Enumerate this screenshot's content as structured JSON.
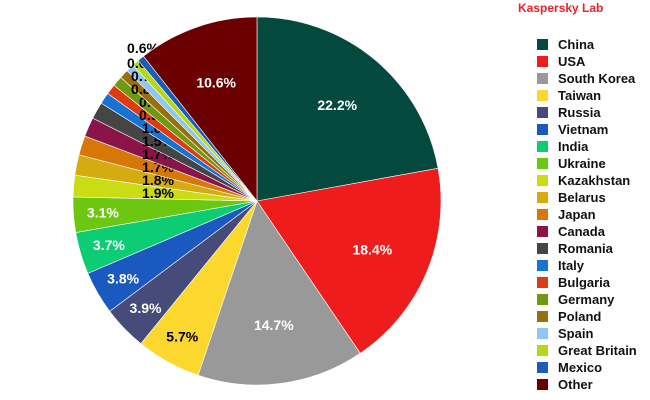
{
  "brand": "Kaspersky Lab",
  "chart_data": {
    "type": "pie",
    "title": "",
    "legend_position": "right",
    "start": "top, clockwise",
    "slices": [
      {
        "name": "China",
        "value": 22.2,
        "label": "22.2%",
        "color": "#04493d"
      },
      {
        "name": "USA",
        "value": 18.4,
        "label": "18.4%",
        "color": "#ee1c1c"
      },
      {
        "name": "South Korea",
        "value": 14.7,
        "label": "14.7%",
        "color": "#999999"
      },
      {
        "name": "Taiwan",
        "value": 5.7,
        "label": "5.7%",
        "color": "#fcd82e"
      },
      {
        "name": "Russia",
        "value": 3.9,
        "label": "3.9%",
        "color": "#464b7a"
      },
      {
        "name": "Vietnam",
        "value": 3.8,
        "label": "3.8%",
        "color": "#1a59c0"
      },
      {
        "name": "India",
        "value": 3.7,
        "label": "3.7%",
        "color": "#0ccd74"
      },
      {
        "name": "Ukraine",
        "value": 3.1,
        "label": "3.1%",
        "color": "#6cc710"
      },
      {
        "name": "Kazakhstan",
        "value": 1.9,
        "label": "1.9%",
        "color": "#c9dc14"
      },
      {
        "name": "Belarus",
        "value": 1.8,
        "label": "1.8%",
        "color": "#d4ac10"
      },
      {
        "name": "Japan",
        "value": 1.7,
        "label": "1.7%",
        "color": "#d67708"
      },
      {
        "name": "Canada",
        "value": 1.7,
        "label": "1.7%",
        "color": "#8a1448"
      },
      {
        "name": "Romania",
        "value": 1.5,
        "label": "1.5%",
        "color": "#454545"
      },
      {
        "name": "Italy",
        "value": 1.0,
        "label": "1.0%",
        "color": "#1673d4"
      },
      {
        "name": "Bulgaria",
        "value": 0.9,
        "label": "0.9%",
        "color": "#dc3c10"
      },
      {
        "name": "Germany",
        "value": 0.9,
        "label": "0.9%",
        "color": "#6f9a10"
      },
      {
        "name": "Poland",
        "value": 0.8,
        "label": "0.8%",
        "color": "#9a6e08"
      },
      {
        "name": "Spain",
        "value": 0.7,
        "label": "0.7%",
        "color": "#8ec6f4"
      },
      {
        "name": "Great Britain",
        "value": 0.6,
        "label": "0.6%",
        "color": "#b4d814"
      },
      {
        "name": "Mexico",
        "value": 0.6,
        "label": "0.6%",
        "color": "#1a5cb8"
      },
      {
        "name": "Other",
        "value": 10.6,
        "label": "10.6%",
        "color": "#6a0000"
      }
    ]
  }
}
